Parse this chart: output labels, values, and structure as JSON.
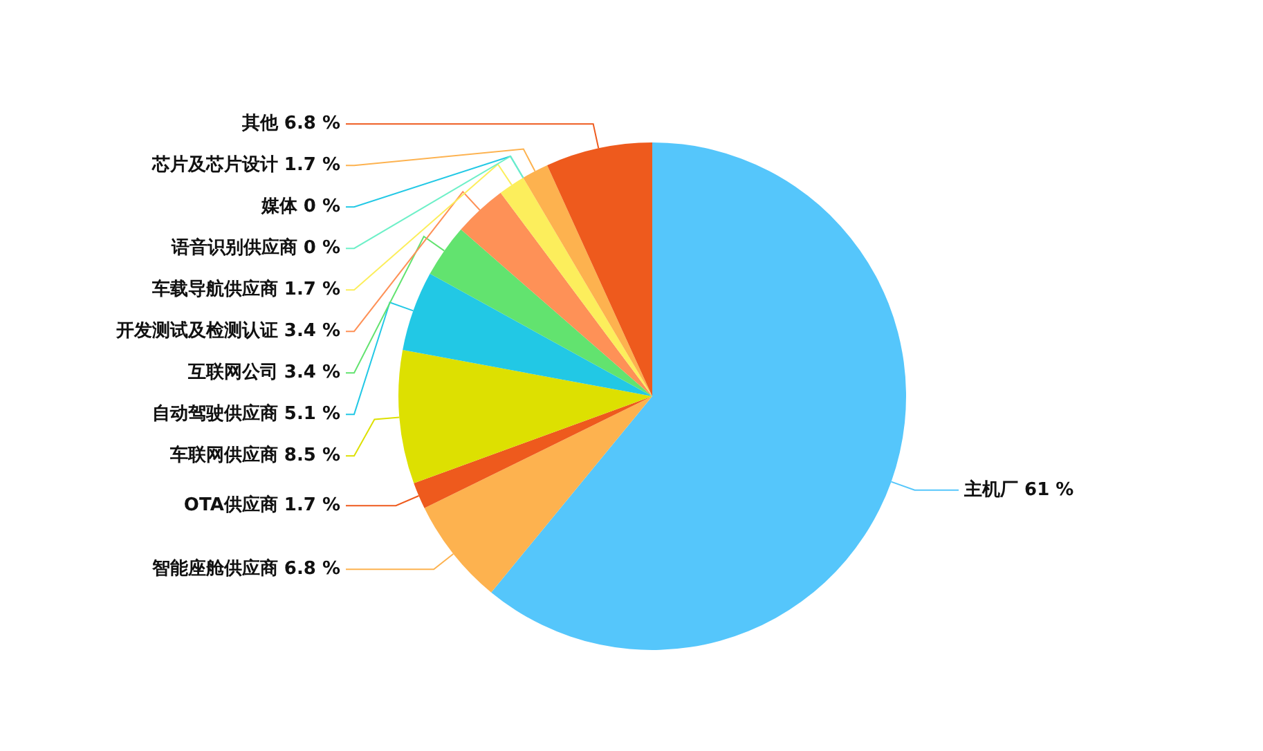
{
  "chart_data": {
    "type": "pie",
    "categories": [
      "主机厂",
      "智能座舱供应商",
      "OTA供应商",
      "车联网供应商",
      "自动驾驶供应商",
      "互联网公司",
      "开发测试及检测认证",
      "车载导航供应商",
      "媒体",
      "语音识别供应商",
      "芯片及芯片设计",
      "其他"
    ],
    "values": [
      61,
      6.8,
      1.7,
      8.5,
      5.1,
      3.4,
      3.4,
      1.7,
      0,
      0,
      1.7,
      6.8
    ],
    "value_labels": [
      "61 %",
      "6.8 %",
      "1.7 %",
      "8.5 %",
      "5.1 %",
      "3.4 %",
      "3.4 %",
      "1.7 %",
      "0 %",
      "0 %",
      "1.7 %",
      "6.8 %"
    ],
    "colors": [
      "#55c6fb",
      "#fdb24f",
      "#ee5a1d",
      "#dde001",
      "#22c8e5",
      "#62e36f",
      "#fe9157",
      "#fcee5c",
      "#22c8e5",
      "#6ef0c8",
      "#fdb24f",
      "#ee5a1d"
    ],
    "legend": false
  }
}
